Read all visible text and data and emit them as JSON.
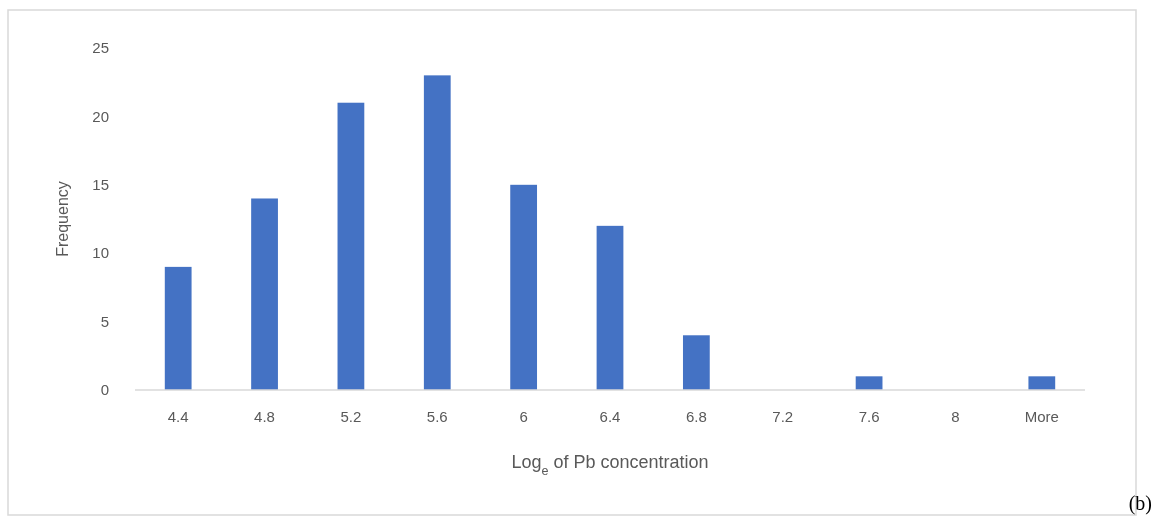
{
  "chart_data": {
    "type": "bar",
    "xlabel": "Log$_{e}$ of Pb concentration",
    "ylabel": "Frequency",
    "categories": [
      "4.4",
      "4.8",
      "5.2",
      "5.6",
      "6",
      "6.4",
      "6.8",
      "7.2",
      "7.6",
      "8",
      "More"
    ],
    "values": [
      9,
      14,
      21,
      23,
      15,
      12,
      4,
      0,
      1,
      0,
      1
    ],
    "color": "#4472c4",
    "ylim": [
      0,
      25
    ],
    "yticks": [
      0,
      5,
      10,
      15,
      20,
      25
    ],
    "grid": false,
    "annotations": [
      "(b)"
    ]
  }
}
